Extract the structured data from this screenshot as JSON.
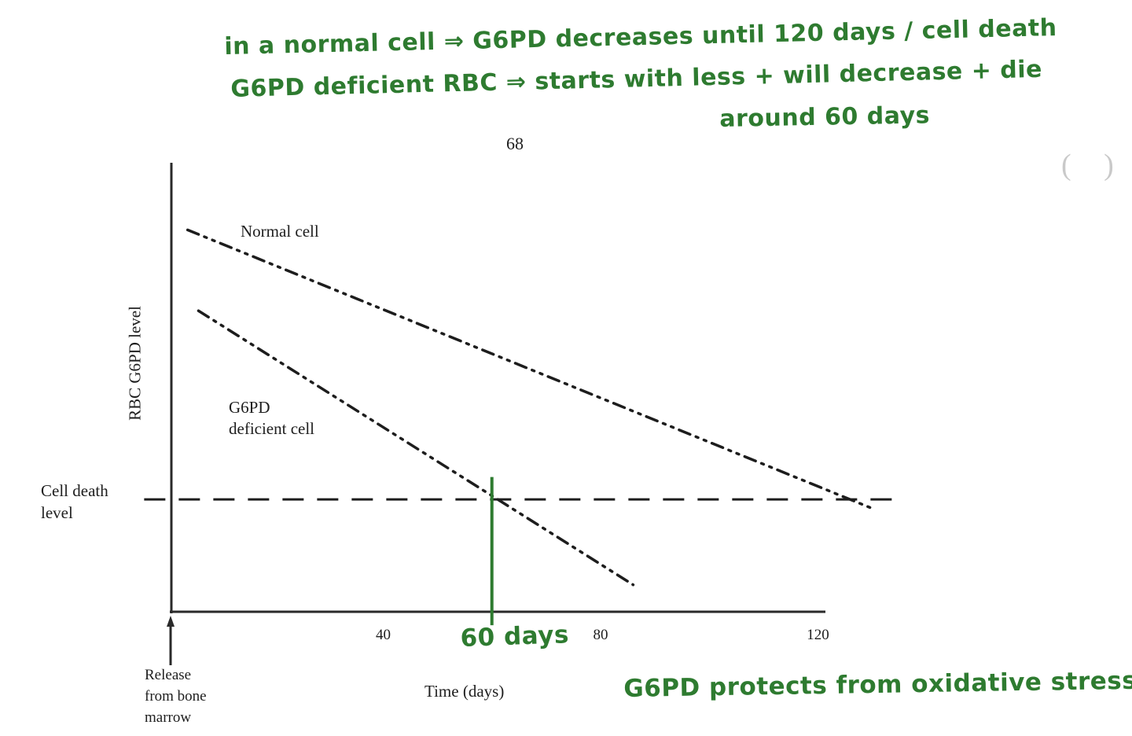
{
  "page": {
    "page_number": "68"
  },
  "colors": {
    "ink_green": "#2e7b30",
    "chart_black": "#1d1d1d",
    "axis_black": "#2a2a2a",
    "faint_gray": "#c9c9c9"
  },
  "annotations": {
    "top_line1": "in a normal cell ⇒ G6PD decreases until 120 days / cell death",
    "top_line2": "G6PD deficient RBC ⇒ starts with less + will decrease + die",
    "top_line3": "around 60 days",
    "bottom_note": "G6PD protects from oxidative stress",
    "faint_marks": "( )"
  },
  "chart_data": {
    "type": "line",
    "title": "",
    "xlabel": "Time (days)",
    "ylabel": "RBC G6PD level",
    "x_ticks": [
      40,
      80,
      120
    ],
    "xlim": [
      0,
      135
    ],
    "ylim": [
      0,
      100
    ],
    "grid": false,
    "legend_position": "labels-on-lines",
    "series": [
      {
        "name": "Normal cell",
        "style": "dash-dot-dot",
        "points": [
          [
            4,
            85
          ],
          [
            130,
            23
          ]
        ],
        "note": "G6PD declines linearly, reaching cell death level near 120-125 days"
      },
      {
        "name": "G6PD deficient cell",
        "style": "dash-dot-dot",
        "points": [
          [
            6,
            67
          ],
          [
            86,
            6
          ]
        ],
        "note": "starts lower, crosses cell death level near 60 days"
      }
    ],
    "reference_lines": [
      {
        "name": "Cell death level",
        "style": "dashed",
        "level": 25,
        "x_range": [
          -4,
          135
        ]
      }
    ],
    "marker": {
      "day": 60,
      "label": "60 days",
      "level_range": [
        -3,
        30
      ]
    },
    "origin_annotation": "Release from bone marrow"
  },
  "chart_labels": {
    "deficient_line1": "G6PD",
    "deficient_line2": "deficient cell",
    "cell_death_line1": "Cell death",
    "cell_death_line2": "level",
    "origin_line1": "Release",
    "origin_line2": "from bone",
    "origin_line3": "marrow"
  }
}
